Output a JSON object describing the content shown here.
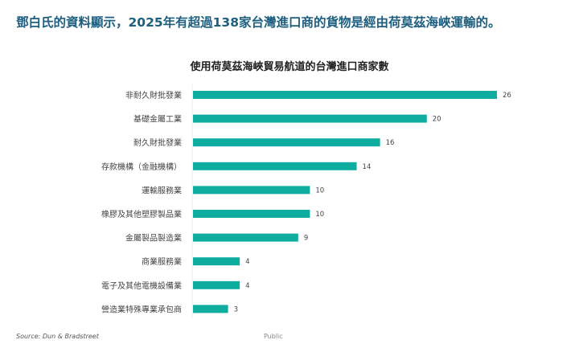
{
  "headline": "鄧白氏的資料顯示，2025年有超過138家台灣進口商的貨物是經由荷莫茲海峽運輸的。",
  "source": "Source: Dun & Bradstreet",
  "footer_label": "Public",
  "colors": {
    "headline": "#1e5f7f",
    "bar": "#0fada0"
  },
  "chart_data": {
    "type": "bar",
    "orientation": "horizontal",
    "title": "使用荷莫茲海峽貿易航道的台灣進口商家數",
    "categories": [
      "非耐久財批發業",
      "基礎金屬工業",
      "耐久財批發業",
      "存款機構（金融機構）",
      "運輸服務業",
      "橡膠及其他塑膠製品業",
      "金屬製品製造業",
      "商業服務業",
      "電子及其他電機設備業",
      "營造業特殊專業承包商"
    ],
    "values": [
      26,
      20,
      16,
      14,
      10,
      10,
      9,
      4,
      4,
      3
    ],
    "xlim": [
      0,
      26
    ],
    "grid": false,
    "data_labels": true
  }
}
